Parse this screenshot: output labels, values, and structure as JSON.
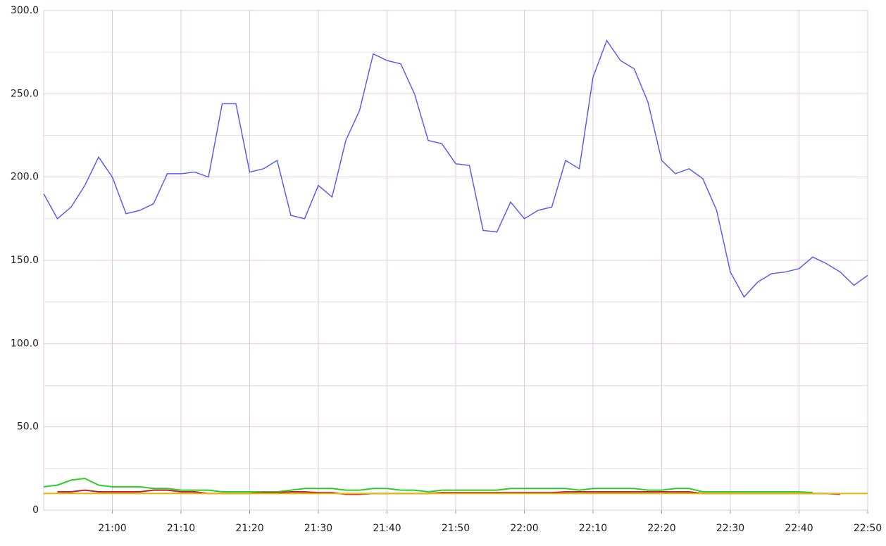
{
  "chart_data": {
    "type": "line",
    "x": [
      "20:50",
      "20:52",
      "20:54",
      "20:56",
      "20:58",
      "21:00",
      "21:02",
      "21:04",
      "21:06",
      "21:08",
      "21:10",
      "21:12",
      "21:14",
      "21:16",
      "21:18",
      "21:20",
      "21:22",
      "21:24",
      "21:26",
      "21:28",
      "21:30",
      "21:32",
      "21:34",
      "21:36",
      "21:38",
      "21:40",
      "21:42",
      "21:44",
      "21:46",
      "21:48",
      "21:50",
      "21:52",
      "21:54",
      "21:56",
      "21:58",
      "22:00",
      "22:02",
      "22:04",
      "22:06",
      "22:08",
      "22:10",
      "22:12",
      "22:14",
      "22:16",
      "22:18",
      "22:20",
      "22:22",
      "22:24",
      "22:26",
      "22:28",
      "22:30",
      "22:32",
      "22:34",
      "22:36",
      "22:38",
      "22:40",
      "22:42",
      "22:44",
      "22:46",
      "22:48",
      "22:50"
    ],
    "series": [
      {
        "color": "#5b5bf5",
        "values": [
          190,
          175,
          182,
          195,
          212,
          200,
          178,
          180,
          184,
          202,
          202,
          203,
          200,
          244,
          244,
          203,
          205,
          210,
          177,
          175,
          195,
          188,
          222,
          240,
          274,
          270,
          268,
          250,
          222,
          220,
          208,
          207,
          168,
          167,
          185,
          175,
          180,
          182,
          210,
          205,
          260,
          282,
          270,
          265,
          245,
          210,
          202,
          205,
          199,
          180,
          143,
          128,
          137,
          142,
          143,
          145,
          152,
          148,
          143,
          135,
          141
        ]
      },
      {
        "color": "#2ecc2e",
        "values": [
          14,
          15,
          18,
          19,
          15,
          14,
          14,
          14,
          13,
          13,
          12,
          12,
          12,
          11,
          11,
          11,
          11,
          11,
          12,
          13,
          13,
          13,
          12,
          12,
          13,
          13,
          12,
          12,
          11,
          12,
          12,
          12,
          12,
          12,
          13,
          13,
          13,
          13,
          13,
          12,
          13,
          13,
          13,
          13,
          12,
          12,
          13,
          13,
          11,
          11,
          11,
          11,
          11,
          11,
          11,
          11,
          10.5,
          null,
          null,
          null,
          null
        ]
      },
      {
        "color": "#c0202a",
        "values": [
          null,
          11,
          11,
          12,
          11,
          11,
          11,
          11,
          12,
          12,
          11,
          11,
          10,
          10,
          10,
          10,
          10.5,
          10.5,
          11,
          11,
          10.5,
          10.5,
          9.5,
          9.5,
          10,
          10,
          10,
          10,
          10,
          10.5,
          10.5,
          10.5,
          10.5,
          10.5,
          10.5,
          10.5,
          10.5,
          10.5,
          11,
          11,
          11,
          11,
          11,
          11,
          11,
          11,
          11,
          11,
          10,
          10,
          10,
          10,
          10,
          10,
          10,
          10,
          10,
          10,
          9.5,
          null,
          null
        ]
      },
      {
        "color": "#e8b800",
        "values": [
          10,
          10,
          10,
          10,
          10,
          10,
          10,
          10,
          10,
          10,
          10,
          10,
          10,
          10,
          10,
          10,
          10,
          10,
          10,
          10,
          10,
          10,
          10,
          10,
          10,
          10,
          10,
          10,
          10,
          10,
          10,
          10,
          10,
          10,
          10,
          10,
          10,
          10,
          10,
          10,
          10,
          10,
          10,
          10,
          10,
          10,
          10,
          10,
          10,
          10,
          10,
          10,
          10,
          10,
          10,
          10,
          10,
          10,
          10,
          10,
          10
        ]
      }
    ],
    "xlim": [
      "20:50",
      "22:50"
    ],
    "xticks": [
      "21:00",
      "21:10",
      "21:20",
      "21:30",
      "21:40",
      "21:50",
      "22:00",
      "22:10",
      "22:20",
      "22:30",
      "22:40",
      "22:50"
    ],
    "ylim": [
      0,
      300
    ],
    "yticks": [
      0,
      {
        "value": 50,
        "label": "50.0"
      },
      {
        "value": 100,
        "label": "100.0"
      },
      {
        "value": 150,
        "label": "150.0"
      },
      {
        "value": 200,
        "label": "200.0"
      },
      {
        "value": 250,
        "label": "250.0"
      },
      {
        "value": 300,
        "label": "300.0"
      }
    ],
    "yminor": [
      25,
      75,
      125,
      175,
      225,
      275
    ],
    "grid": true
  }
}
